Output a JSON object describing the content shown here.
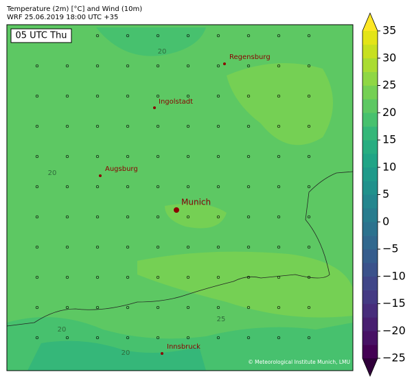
{
  "header": {
    "title": "Temperature (2m) [°C] and Wind (10m)",
    "subtitle": "WRF 25.06.2019 18:00 UTC +35"
  },
  "map": {
    "time_label": "05 UTC Thu",
    "cities": [
      "Regensburg",
      "Ingolstadt",
      "Augsburg",
      "Munich",
      "Innsbruck"
    ],
    "contour_labels": [
      "20",
      "20",
      "20",
      "20",
      "25"
    ],
    "credit": "© Meteorological Institute Munich, LMU"
  },
  "colorbar": {
    "range": [
      -25,
      35
    ],
    "ticks": [
      {
        "value": -25,
        "label": "−25"
      },
      {
        "value": -20,
        "label": "−20"
      },
      {
        "value": -15,
        "label": "−15"
      },
      {
        "value": -10,
        "label": "−10"
      },
      {
        "value": -5,
        "label": "−5"
      },
      0,
      5,
      10,
      15,
      20,
      25,
      30,
      35
    ],
    "colors": [
      "#440154",
      "#471164",
      "#481f70",
      "#472d7b",
      "#443a83",
      "#404688",
      "#3b528b",
      "#365d8d",
      "#31688e",
      "#2c728e",
      "#287c8e",
      "#24868e",
      "#21918c",
      "#1f9a8a",
      "#20a486",
      "#27ad81",
      "#35b779",
      "#47c16e",
      "#5dc863",
      "#75d054",
      "#8fd744",
      "#aadc32",
      "#c7e020",
      "#e3e418"
    ],
    "extend_colors": [
      "#30003a",
      "#fde725"
    ]
  }
}
